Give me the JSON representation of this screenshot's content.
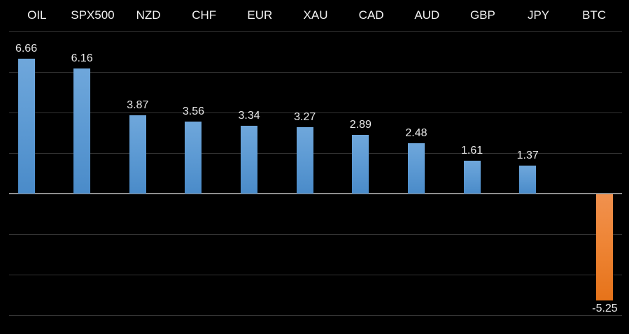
{
  "chart_data": {
    "type": "bar",
    "title": "",
    "categories": [
      "OIL",
      "SPX500",
      "NZD",
      "CHF",
      "EUR",
      "XAU",
      "CAD",
      "AUD",
      "GBP",
      "JPY",
      "BTC"
    ],
    "values": [
      6.66,
      6.16,
      3.87,
      3.56,
      3.34,
      3.27,
      2.89,
      2.48,
      1.61,
      1.37,
      -5.25
    ],
    "data_labels": [
      "6.66",
      "6.16",
      "3.87",
      "3.56",
      "3.34",
      "3.27",
      "2.89",
      "2.48",
      "1.61",
      "1.37",
      "-5.25"
    ],
    "xlabel": "",
    "ylabel": "",
    "ylim": [
      -6.9,
      8.1
    ],
    "gridline_values": [
      8,
      6,
      4,
      2,
      0,
      -2,
      -4,
      -6
    ],
    "grid": true,
    "legend": "none",
    "category_axis_position": "top",
    "colors": {
      "background": "#000000",
      "positive_bar_top": "#6FA7DB",
      "positive_bar_bottom": "#4A8BC9",
      "negative_bar_top": "#F1914E",
      "negative_bar_bottom": "#E6731A",
      "gridline": "#343434",
      "zero_line": "#8F8F8F",
      "category_label_color": "#F2F2F2",
      "value_label_color": "#E8E8E8"
    }
  }
}
